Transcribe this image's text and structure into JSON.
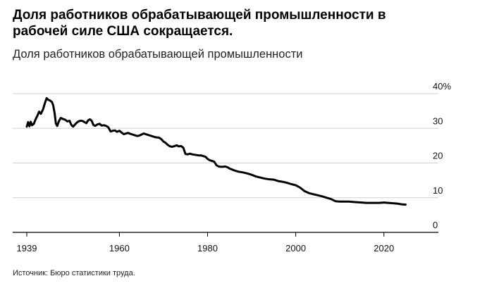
{
  "title": "Доля работников обрабатывающей промышленности в рабочей силе США сокращается.",
  "subtitle": "Доля работников обрабатывающей промышленности",
  "source": "Источник: Бюро статистики труда.",
  "chart_data": {
    "type": "line",
    "title": "Доля работников обрабатывающей промышленности в рабочей силе США сокращается.",
    "subtitle": "Доля работников обрабатывающей промышленности",
    "xlabel": "",
    "ylabel": "",
    "xlim": [
      1939,
      2030
    ],
    "ylim": [
      0,
      40
    ],
    "y_unit": "%",
    "grid": "horizontal",
    "legend": "none",
    "x_ticks": [
      {
        "value": 1939,
        "label": "1939"
      },
      {
        "value": 1960,
        "label": "1960"
      },
      {
        "value": 1980,
        "label": "1980"
      },
      {
        "value": 2000,
        "label": "2000"
      },
      {
        "value": 2020,
        "label": "2020"
      }
    ],
    "y_ticks": [
      {
        "value": 0,
        "label": "0"
      },
      {
        "value": 10,
        "label": "10"
      },
      {
        "value": 20,
        "label": "20"
      },
      {
        "value": 30,
        "label": "30"
      },
      {
        "value": 40,
        "label": "40%"
      }
    ],
    "series": [
      {
        "color": "#000000",
        "points": [
          [
            1939.0,
            30.5
          ],
          [
            1939.3,
            31.8
          ],
          [
            1939.6,
            30.6
          ],
          [
            1939.9,
            31.9
          ],
          [
            1940.2,
            30.9
          ],
          [
            1940.6,
            31.3
          ],
          [
            1941.0,
            32.6
          ],
          [
            1941.4,
            33.6
          ],
          [
            1941.8,
            34.8
          ],
          [
            1942.2,
            34.2
          ],
          [
            1942.7,
            35.5
          ],
          [
            1943.1,
            37.2
          ],
          [
            1943.5,
            38.7
          ],
          [
            1943.9,
            38.2
          ],
          [
            1944.3,
            38.0
          ],
          [
            1944.7,
            37.6
          ],
          [
            1945.0,
            36.6
          ],
          [
            1945.3,
            34.5
          ],
          [
            1945.6,
            31.4
          ],
          [
            1945.9,
            30.7
          ],
          [
            1946.3,
            32.1
          ],
          [
            1946.7,
            33.0
          ],
          [
            1947.2,
            32.7
          ],
          [
            1947.7,
            32.5
          ],
          [
            1948.2,
            32.0
          ],
          [
            1948.7,
            32.2
          ],
          [
            1949.1,
            31.0
          ],
          [
            1949.5,
            30.5
          ],
          [
            1949.8,
            30.9
          ],
          [
            1950.2,
            31.5
          ],
          [
            1950.7,
            32.0
          ],
          [
            1951.2,
            32.2
          ],
          [
            1951.7,
            32.1
          ],
          [
            1952.1,
            31.8
          ],
          [
            1952.5,
            31.5
          ],
          [
            1952.9,
            32.3
          ],
          [
            1953.3,
            32.6
          ],
          [
            1953.7,
            32.2
          ],
          [
            1954.1,
            31.0
          ],
          [
            1954.5,
            30.7
          ],
          [
            1955.0,
            31.1
          ],
          [
            1955.5,
            31.3
          ],
          [
            1956.0,
            30.8
          ],
          [
            1956.5,
            30.9
          ],
          [
            1957.0,
            30.7
          ],
          [
            1957.5,
            30.3
          ],
          [
            1958.0,
            29.1
          ],
          [
            1958.5,
            29.3
          ],
          [
            1959.0,
            29.4
          ],
          [
            1959.5,
            29.0
          ],
          [
            1960.0,
            29.3
          ],
          [
            1960.5,
            28.8
          ],
          [
            1961.0,
            28.3
          ],
          [
            1961.5,
            28.5
          ],
          [
            1962.0,
            28.7
          ],
          [
            1962.5,
            28.4
          ],
          [
            1963.0,
            28.2
          ],
          [
            1963.5,
            28.0
          ],
          [
            1964.0,
            27.8
          ],
          [
            1964.5,
            27.9
          ],
          [
            1965.0,
            28.2
          ],
          [
            1965.5,
            28.5
          ],
          [
            1966.0,
            28.3
          ],
          [
            1966.5,
            28.1
          ],
          [
            1967.0,
            27.9
          ],
          [
            1967.5,
            27.7
          ],
          [
            1968.0,
            27.5
          ],
          [
            1968.5,
            27.4
          ],
          [
            1969.0,
            27.3
          ],
          [
            1969.5,
            26.9
          ],
          [
            1970.0,
            26.2
          ],
          [
            1970.5,
            25.8
          ],
          [
            1971.0,
            25.2
          ],
          [
            1971.5,
            24.8
          ],
          [
            1972.0,
            24.7
          ],
          [
            1972.5,
            24.9
          ],
          [
            1973.0,
            25.1
          ],
          [
            1973.5,
            24.8
          ],
          [
            1974.0,
            24.9
          ],
          [
            1974.5,
            24.4
          ],
          [
            1975.0,
            22.6
          ],
          [
            1975.5,
            22.5
          ],
          [
            1976.0,
            22.7
          ],
          [
            1976.5,
            22.5
          ],
          [
            1977.0,
            22.4
          ],
          [
            1977.5,
            22.3
          ],
          [
            1978.0,
            22.2
          ],
          [
            1978.5,
            22.2
          ],
          [
            1979.0,
            22.0
          ],
          [
            1979.5,
            21.8
          ],
          [
            1980.0,
            21.2
          ],
          [
            1980.5,
            20.8
          ],
          [
            1981.0,
            20.6
          ],
          [
            1981.5,
            20.4
          ],
          [
            1982.0,
            19.4
          ],
          [
            1982.5,
            19.0
          ],
          [
            1983.0,
            18.9
          ],
          [
            1983.5,
            18.9
          ],
          [
            1984.0,
            19.0
          ],
          [
            1984.5,
            18.8
          ],
          [
            1985.0,
            18.4
          ],
          [
            1986.0,
            17.9
          ],
          [
            1987.0,
            17.5
          ],
          [
            1988.0,
            17.3
          ],
          [
            1989.0,
            17.0
          ],
          [
            1990.0,
            16.6
          ],
          [
            1991.0,
            16.1
          ],
          [
            1992.0,
            15.8
          ],
          [
            1993.0,
            15.5
          ],
          [
            1994.0,
            15.3
          ],
          [
            1995.0,
            15.2
          ],
          [
            1996.0,
            14.8
          ],
          [
            1997.0,
            14.6
          ],
          [
            1998.0,
            14.3
          ],
          [
            1999.0,
            13.9
          ],
          [
            2000.0,
            13.6
          ],
          [
            2001.0,
            12.9
          ],
          [
            2002.0,
            11.9
          ],
          [
            2003.0,
            11.3
          ],
          [
            2004.0,
            11.0
          ],
          [
            2005.0,
            10.7
          ],
          [
            2006.0,
            10.4
          ],
          [
            2007.0,
            10.0
          ],
          [
            2008.0,
            9.6
          ],
          [
            2009.0,
            9.0
          ],
          [
            2010.0,
            8.9
          ],
          [
            2011.0,
            8.9
          ],
          [
            2012.0,
            8.9
          ],
          [
            2013.0,
            8.8
          ],
          [
            2014.0,
            8.7
          ],
          [
            2015.0,
            8.6
          ],
          [
            2016.0,
            8.5
          ],
          [
            2017.0,
            8.5
          ],
          [
            2018.0,
            8.5
          ],
          [
            2019.0,
            8.5
          ],
          [
            2020.0,
            8.6
          ],
          [
            2021.0,
            8.5
          ],
          [
            2022.0,
            8.4
          ],
          [
            2023.0,
            8.3
          ],
          [
            2024.0,
            8.1
          ],
          [
            2024.9,
            8.0
          ]
        ]
      }
    ]
  }
}
